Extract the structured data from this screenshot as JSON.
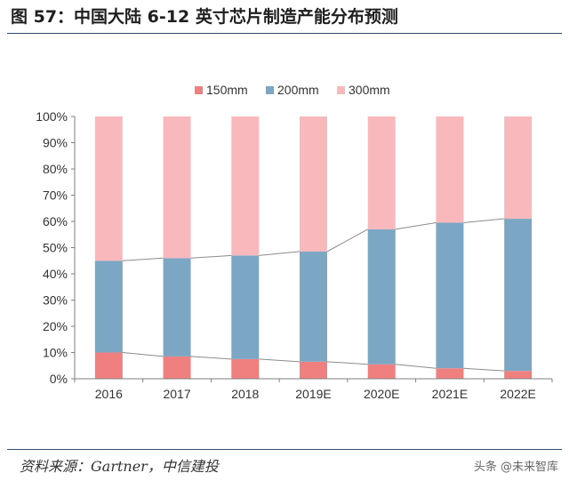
{
  "header": {
    "title": "图 57：中国大陆 6-12 英寸芯片制造产能分布预测"
  },
  "footer": {
    "source": "资料来源：Gartner，中信建投",
    "watermark": "头条 @未来智库"
  },
  "chart_data": {
    "type": "bar",
    "stacked": true,
    "title": "",
    "xlabel": "",
    "ylabel": "",
    "categories": [
      "2016",
      "2017",
      "2018",
      "2019E",
      "2020E",
      "2021E",
      "2022E"
    ],
    "series": [
      {
        "name": "150mm",
        "color": "#f08080",
        "values": [
          10,
          8.5,
          7.5,
          6.5,
          5.5,
          4,
          3
        ]
      },
      {
        "name": "200mm",
        "color": "#7ba7c4",
        "values": [
          35,
          37.5,
          39.5,
          42,
          51.5,
          55.5,
          58
        ]
      },
      {
        "name": "300mm",
        "color": "#f9b8bc",
        "values": [
          55,
          54,
          53,
          51.5,
          43,
          40.5,
          39
        ]
      }
    ],
    "ylim": [
      0,
      100
    ],
    "yticks": [
      "0%",
      "10%",
      "20%",
      "30%",
      "40%",
      "50%",
      "60%",
      "70%",
      "80%",
      "90%",
      "100%"
    ],
    "legend_position": "top-center",
    "series_lines": true,
    "grid": false
  }
}
